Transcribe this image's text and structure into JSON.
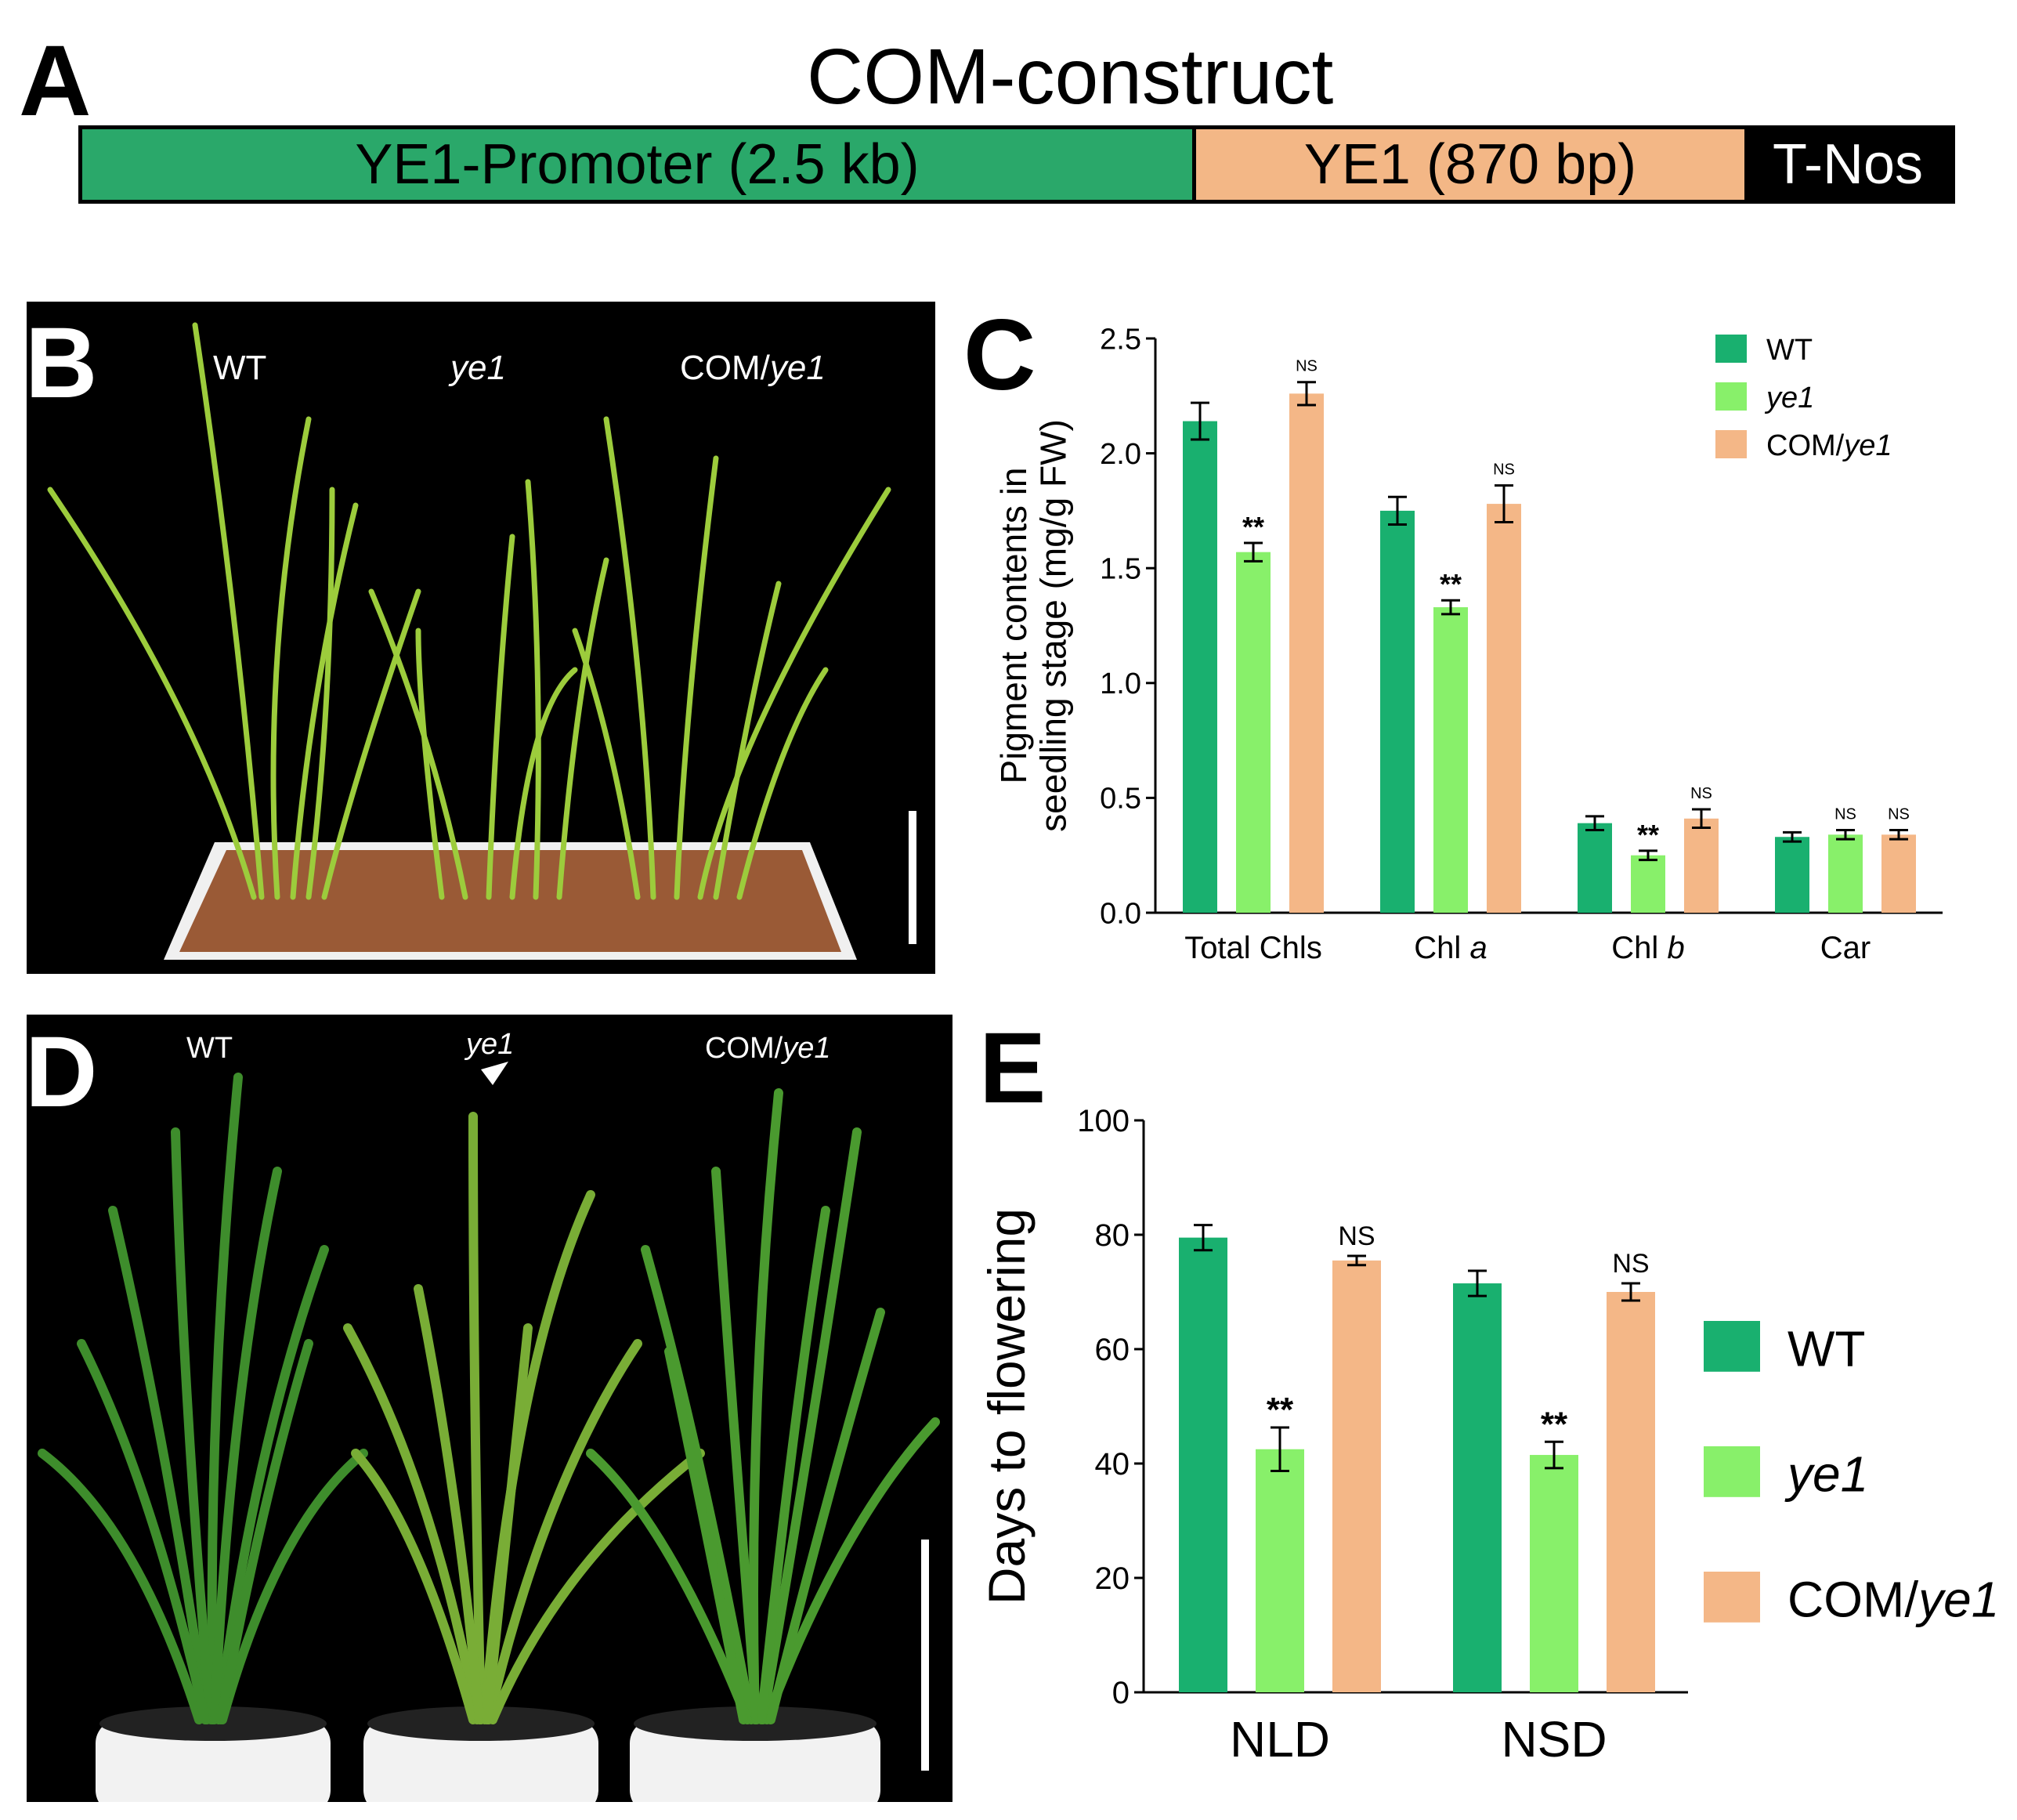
{
  "panel_a": {
    "label": "A",
    "title": "COM-construct",
    "segments": [
      {
        "name": "YE1-Promoter (2.5 kb)",
        "color": "#2aa86a"
      },
      {
        "name": "YE1 (870 bp)",
        "color": "#f3b786"
      },
      {
        "name": "T-Nos",
        "color": "#000000"
      }
    ]
  },
  "panel_b": {
    "label": "B",
    "captions": [
      "WT",
      "ye1",
      "COM/ye1"
    ]
  },
  "panel_d": {
    "label": "D",
    "captions": [
      "WT",
      "ye1",
      "COM/ye1"
    ]
  },
  "colors": {
    "WT": "#19b06f",
    "ye1": "#88f06a",
    "COM": "#f4b787"
  },
  "chart_data": [
    {
      "panel": "C",
      "type": "bar",
      "title": "",
      "ylabel": "Pigment contents in seedling stage (mg/g FW)",
      "ylim": [
        0,
        2.5
      ],
      "yticks": [
        "0.0",
        "0.5",
        "1.0",
        "1.5",
        "2.0",
        "2.5"
      ],
      "categories": [
        "Total Chls",
        "Chl a",
        "Chl b",
        "Car"
      ],
      "legend": [
        "WT",
        "ye1",
        "COM/ye1"
      ],
      "series": [
        {
          "name": "WT",
          "values": [
            2.14,
            1.75,
            0.39,
            0.33
          ],
          "errors": [
            0.08,
            0.06,
            0.03,
            0.02
          ],
          "marks": [
            "",
            "",
            "",
            ""
          ]
        },
        {
          "name": "ye1",
          "values": [
            1.57,
            1.33,
            0.25,
            0.34
          ],
          "errors": [
            0.04,
            0.03,
            0.02,
            0.02
          ],
          "marks": [
            "**",
            "**",
            "**",
            "NS"
          ]
        },
        {
          "name": "COM/ye1",
          "values": [
            2.26,
            1.78,
            0.41,
            0.34
          ],
          "errors": [
            0.05,
            0.08,
            0.04,
            0.02
          ],
          "marks": [
            "NS",
            "NS",
            "NS",
            "NS"
          ]
        }
      ]
    },
    {
      "panel": "E",
      "type": "bar",
      "title": "",
      "ylabel": "Days to flowering",
      "ylim": [
        0,
        100
      ],
      "yticks": [
        "0",
        "20",
        "40",
        "60",
        "80",
        "100"
      ],
      "categories": [
        "NLD",
        "NSD"
      ],
      "legend": [
        "WT",
        "ye1",
        "COM/ye1"
      ],
      "series": [
        {
          "name": "WT",
          "values": [
            79.5,
            71.5
          ],
          "errors": [
            2.2,
            2.2
          ],
          "marks": [
            "",
            ""
          ]
        },
        {
          "name": "ye1",
          "values": [
            42.5,
            41.5
          ],
          "errors": [
            3.8,
            2.3
          ],
          "marks": [
            "**",
            "**"
          ]
        },
        {
          "name": "COM/ye1",
          "values": [
            75.5,
            70
          ],
          "errors": [
            0.8,
            1.5
          ],
          "marks": [
            "NS",
            "NS"
          ]
        }
      ]
    }
  ]
}
